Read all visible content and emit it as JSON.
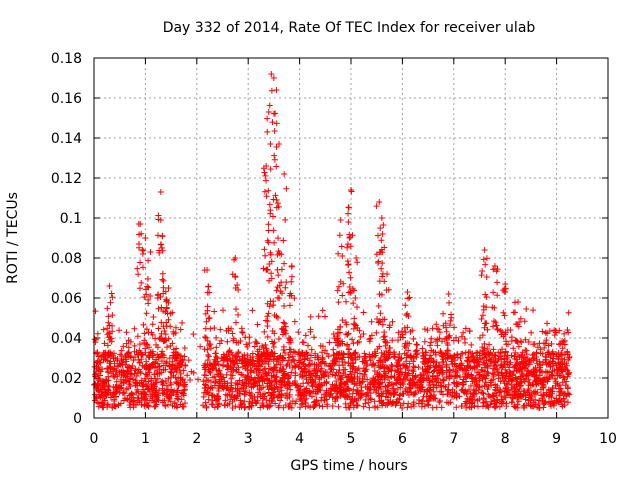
{
  "chart_data": {
    "type": "scatter",
    "title": "Day 332 of 2014, Rate Of TEC Index for receiver ulab",
    "xlabel": "GPS time / hours",
    "ylabel": "ROTI / TECUs",
    "xlim": [
      0,
      10
    ],
    "ylim": [
      0,
      0.18
    ],
    "x_ticks": [
      0,
      1,
      2,
      3,
      4,
      5,
      6,
      7,
      8,
      9,
      10
    ],
    "x_tick_labels": [
      "0",
      "1",
      "2",
      "3",
      "4",
      "5",
      "6",
      "7",
      "8",
      "9",
      "10"
    ],
    "y_ticks": [
      0,
      0.02,
      0.04,
      0.06,
      0.08,
      0.1,
      0.12,
      0.14,
      0.16,
      0.18
    ],
    "y_tick_labels": [
      "0",
      "0.02",
      "0.04",
      "0.06",
      "0.08",
      "0.1",
      "0.12",
      "0.14",
      "0.16",
      "0.18"
    ],
    "grid": true,
    "marker": "+",
    "color": "#ff0000",
    "description_of_density": "Dense band of points between 0.005 and 0.04 TECU across 0-9.25 h with a gap near 1.8-2.1 h; isolated spikes listed as peaks",
    "peaks": [
      {
        "x": 0.3,
        "y": 0.066
      },
      {
        "x": 0.9,
        "y": 0.097
      },
      {
        "x": 1.0,
        "y": 0.09
      },
      {
        "x": 1.1,
        "y": 0.083
      },
      {
        "x": 1.3,
        "y": 0.113
      },
      {
        "x": 1.3,
        "y": 0.099
      },
      {
        "x": 1.45,
        "y": 0.065
      },
      {
        "x": 2.2,
        "y": 0.074
      },
      {
        "x": 2.75,
        "y": 0.08
      },
      {
        "x": 3.35,
        "y": 0.126
      },
      {
        "x": 3.4,
        "y": 0.153
      },
      {
        "x": 3.45,
        "y": 0.172
      },
      {
        "x": 3.5,
        "y": 0.17
      },
      {
        "x": 3.55,
        "y": 0.164
      },
      {
        "x": 3.6,
        "y": 0.137
      },
      {
        "x": 3.7,
        "y": 0.122
      },
      {
        "x": 3.85,
        "y": 0.076
      },
      {
        "x": 4.8,
        "y": 0.099
      },
      {
        "x": 4.95,
        "y": 0.098
      },
      {
        "x": 5.0,
        "y": 0.114
      },
      {
        "x": 5.1,
        "y": 0.08
      },
      {
        "x": 5.55,
        "y": 0.108
      },
      {
        "x": 5.6,
        "y": 0.1
      },
      {
        "x": 5.7,
        "y": 0.072
      },
      {
        "x": 6.1,
        "y": 0.063
      },
      {
        "x": 6.9,
        "y": 0.062
      },
      {
        "x": 7.6,
        "y": 0.084
      },
      {
        "x": 7.8,
        "y": 0.076
      },
      {
        "x": 8.0,
        "y": 0.067
      },
      {
        "x": 8.25,
        "y": 0.058
      }
    ]
  }
}
